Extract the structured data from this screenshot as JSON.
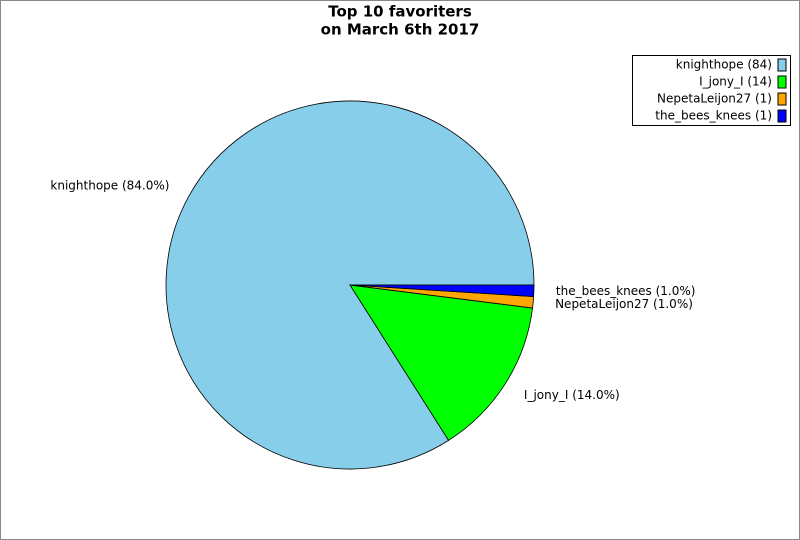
{
  "chart_data": {
    "type": "pie",
    "title": "Top 10 favoriters",
    "subtitle": "on March 6th 2017",
    "categories": [
      "knighthope (84)",
      "I_jony_I (14)",
      "NepetaLeijon27 (1)",
      "the_bees_knees (1)"
    ],
    "values": [
      84,
      14,
      1,
      1
    ],
    "value_labels": [
      "knighthope (84.0%)",
      "I_jony_I (14.0%)",
      "NepetaLeijon27 (1.0%)",
      "the_bees_knees (1.0%)"
    ],
    "colors": [
      "#87ceeb",
      "#00ff00",
      "#ffa500",
      "#0000ff"
    ],
    "legend": "top-right"
  }
}
